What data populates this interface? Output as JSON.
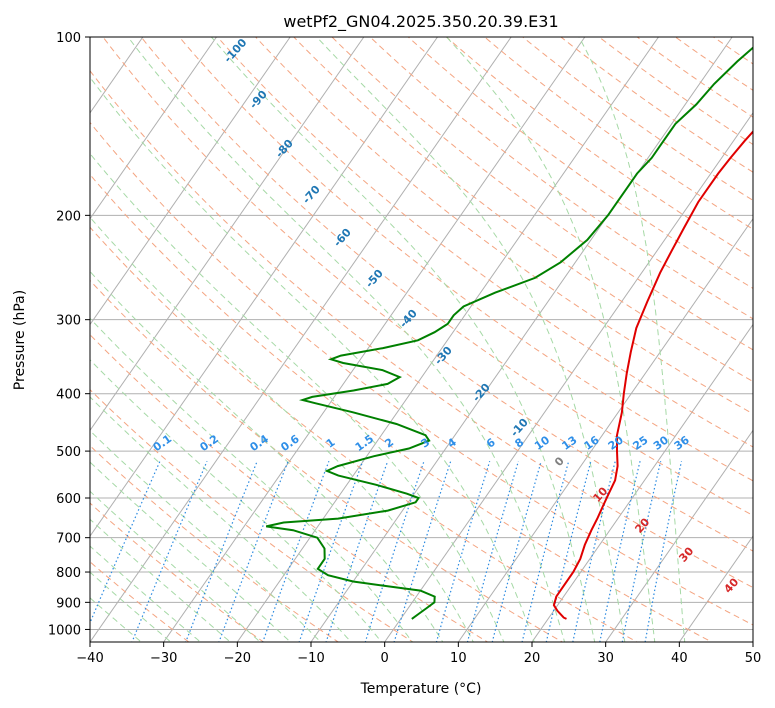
{
  "chart_data": {
    "type": "line",
    "title": "wetPf2_GN04.2025.350.20.39.E31",
    "xlabel": "Temperature (°C)",
    "ylabel": "Pressure (hPa)",
    "xlim": [
      -40,
      50
    ],
    "ylim": [
      1050,
      100
    ],
    "y_scale": "log",
    "grid": true,
    "x_ticks": [
      "−40",
      "−30",
      "−20",
      "−10",
      "0",
      "10",
      "20",
      "30",
      "40",
      "50"
    ],
    "x_tick_values": [
      -40,
      -30,
      -20,
      -10,
      0,
      10,
      20,
      30,
      40,
      50
    ],
    "y_ticks": [
      "100",
      "200",
      "300",
      "400",
      "500",
      "600",
      "700",
      "800",
      "900",
      "1000"
    ],
    "y_tick_values": [
      100,
      200,
      300,
      400,
      500,
      600,
      700,
      800,
      900,
      1000
    ],
    "series": [
      {
        "role": "temperature",
        "color": "#e00000",
        "points": [
          [
            960,
            22.5
          ],
          [
            955,
            22.0
          ],
          [
            930,
            20.5
          ],
          [
            910,
            19.5
          ],
          [
            880,
            19.0
          ],
          [
            850,
            19.0
          ],
          [
            800,
            19.0
          ],
          [
            760,
            18.7
          ],
          [
            720,
            18.0
          ],
          [
            680,
            17.5
          ],
          [
            650,
            17.2
          ],
          [
            620,
            16.8
          ],
          [
            590,
            16.4
          ],
          [
            560,
            16.0
          ],
          [
            530,
            15.0
          ],
          [
            500,
            13.5
          ],
          [
            470,
            12.0
          ],
          [
            430,
            10.5
          ],
          [
            400,
            9.0
          ],
          [
            370,
            7.5
          ],
          [
            340,
            6.0
          ],
          [
            310,
            4.5
          ],
          [
            280,
            3.5
          ],
          [
            250,
            2.5
          ],
          [
            230,
            2.0
          ],
          [
            210,
            1.5
          ],
          [
            190,
            1.0
          ],
          [
            180,
            1.0
          ],
          [
            170,
            1.0
          ],
          [
            160,
            1.2
          ],
          [
            150,
            1.5
          ],
          [
            140,
            2.0
          ],
          [
            130,
            2.5
          ],
          [
            120,
            3.0
          ],
          [
            110,
            3.5
          ],
          [
            100,
            4.0
          ]
        ]
      },
      {
        "role": "dewpoint",
        "color": "#008000",
        "points": [
          [
            960,
            1.5
          ],
          [
            940,
            2.0
          ],
          [
            920,
            2.5
          ],
          [
            900,
            3.0
          ],
          [
            880,
            2.5
          ],
          [
            860,
            0.0
          ],
          [
            845,
            -5.0
          ],
          [
            830,
            -10.0
          ],
          [
            810,
            -14.0
          ],
          [
            790,
            -16.0
          ],
          [
            760,
            -16.0
          ],
          [
            730,
            -17.0
          ],
          [
            700,
            -19.0
          ],
          [
            680,
            -23.0
          ],
          [
            670,
            -27.0
          ],
          [
            660,
            -25.0
          ],
          [
            650,
            -18.0
          ],
          [
            630,
            -12.0
          ],
          [
            610,
            -9.0
          ],
          [
            600,
            -9.0
          ],
          [
            590,
            -11.0
          ],
          [
            570,
            -16.0
          ],
          [
            550,
            -22.0
          ],
          [
            540,
            -24.0
          ],
          [
            530,
            -23.0
          ],
          [
            510,
            -19.0
          ],
          [
            495,
            -15.0
          ],
          [
            480,
            -13.0
          ],
          [
            470,
            -14.0
          ],
          [
            450,
            -19.0
          ],
          [
            430,
            -26.0
          ],
          [
            415,
            -32.0
          ],
          [
            410,
            -34.0
          ],
          [
            405,
            -33.0
          ],
          [
            395,
            -28.0
          ],
          [
            385,
            -24.0
          ],
          [
            375,
            -23.0
          ],
          [
            365,
            -26.0
          ],
          [
            355,
            -32.0
          ],
          [
            350,
            -34.0
          ],
          [
            345,
            -33.0
          ],
          [
            335,
            -28.0
          ],
          [
            325,
            -24.0
          ],
          [
            315,
            -22.5
          ],
          [
            305,
            -21.5
          ],
          [
            295,
            -21.5
          ],
          [
            285,
            -21.0
          ],
          [
            270,
            -18.0
          ],
          [
            255,
            -14.0
          ],
          [
            240,
            -12.0
          ],
          [
            220,
            -10.5
          ],
          [
            200,
            -10.0
          ],
          [
            190,
            -10.0
          ],
          [
            180,
            -10.0
          ],
          [
            170,
            -10.0
          ],
          [
            160,
            -9.5
          ],
          [
            150,
            -9.5
          ],
          [
            140,
            -9.5
          ],
          [
            130,
            -8.5
          ],
          [
            120,
            -8.0
          ],
          [
            110,
            -7.0
          ],
          [
            100,
            -5.5
          ]
        ]
      }
    ],
    "dry_adiabat_labels": [
      "-100",
      "-90",
      "-80",
      "-70",
      "-60",
      "-50",
      "-40",
      "-30",
      "-20",
      "-10",
      "0",
      "10",
      "20",
      "30",
      "40"
    ],
    "dry_adiabat_label_values": [
      -100,
      -90,
      -80,
      -70,
      -60,
      -50,
      -40,
      -30,
      -20,
      -10,
      0,
      10,
      20,
      30,
      40
    ],
    "mixing_ratio_labels": [
      "0.1",
      "0.2",
      "0.4",
      "0.6",
      "1",
      "1.5",
      "2",
      "3",
      "4",
      "6",
      "8",
      "10",
      "13",
      "16",
      "20",
      "25",
      "30",
      "36"
    ],
    "mixing_ratio_values": [
      0.1,
      0.2,
      0.4,
      0.6,
      1,
      1.5,
      2,
      3,
      4,
      6,
      8,
      10,
      13,
      16,
      20,
      25,
      30,
      36
    ],
    "colors": {
      "isotherm": "#b0b0b0",
      "isobar": "#b0b0b0",
      "dry_adiabat": "#f4a582",
      "moist_adiabat": "#a6d9a6",
      "mixing_ratio": "#2b8ae0",
      "label_blue": "#1f77b4",
      "label_red": "#d62728",
      "label_mixing": "#2f8fe8",
      "label_gray": "#808080"
    }
  }
}
